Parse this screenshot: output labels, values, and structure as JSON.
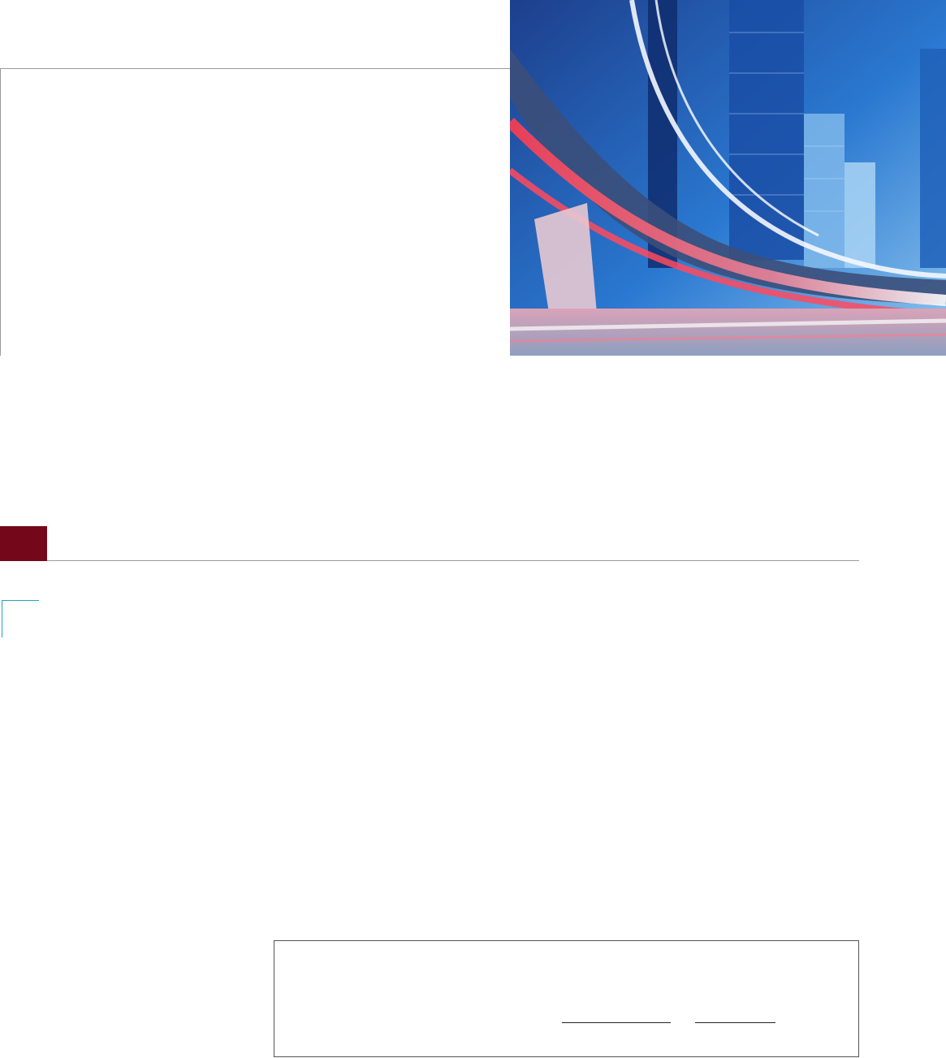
{
  "page": {
    "accent_color": "#74081a",
    "rule_color": "#9a9a9a",
    "corner_color": "#20a7b3"
  },
  "photo": {
    "subject": "city-highway-light-trails"
  }
}
